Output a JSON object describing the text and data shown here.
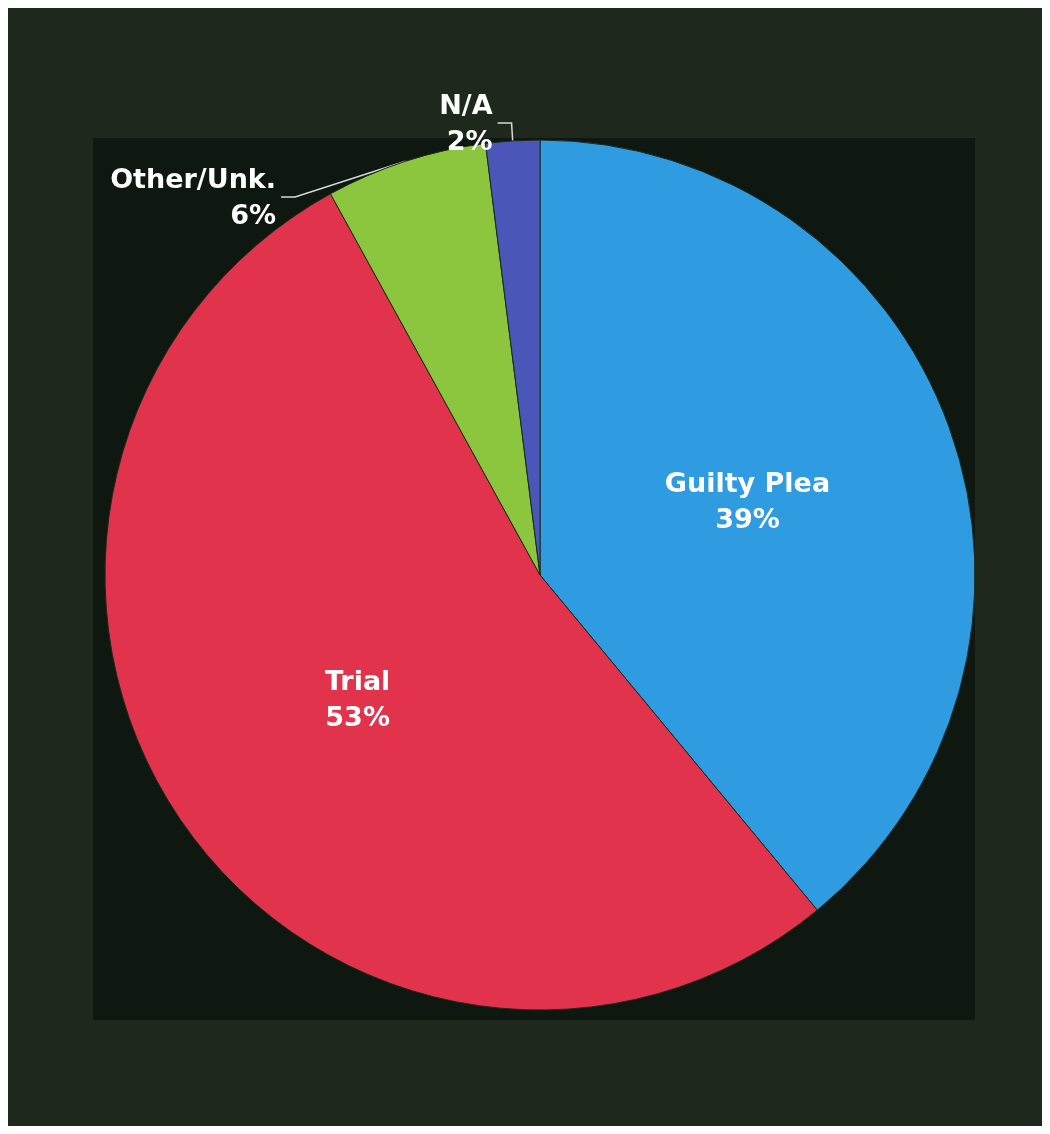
{
  "chart_data": {
    "type": "pie",
    "categories": [
      "Guilty Plea",
      "Trial",
      "Other/Unk.",
      "N/A"
    ],
    "values": [
      39,
      53,
      6,
      2
    ],
    "value_labels": [
      "39%",
      "53%",
      "6%",
      "2%"
    ],
    "colors": [
      "#2f9ce2",
      "#e2334c",
      "#8cc63f",
      "#4a56b8"
    ]
  }
}
